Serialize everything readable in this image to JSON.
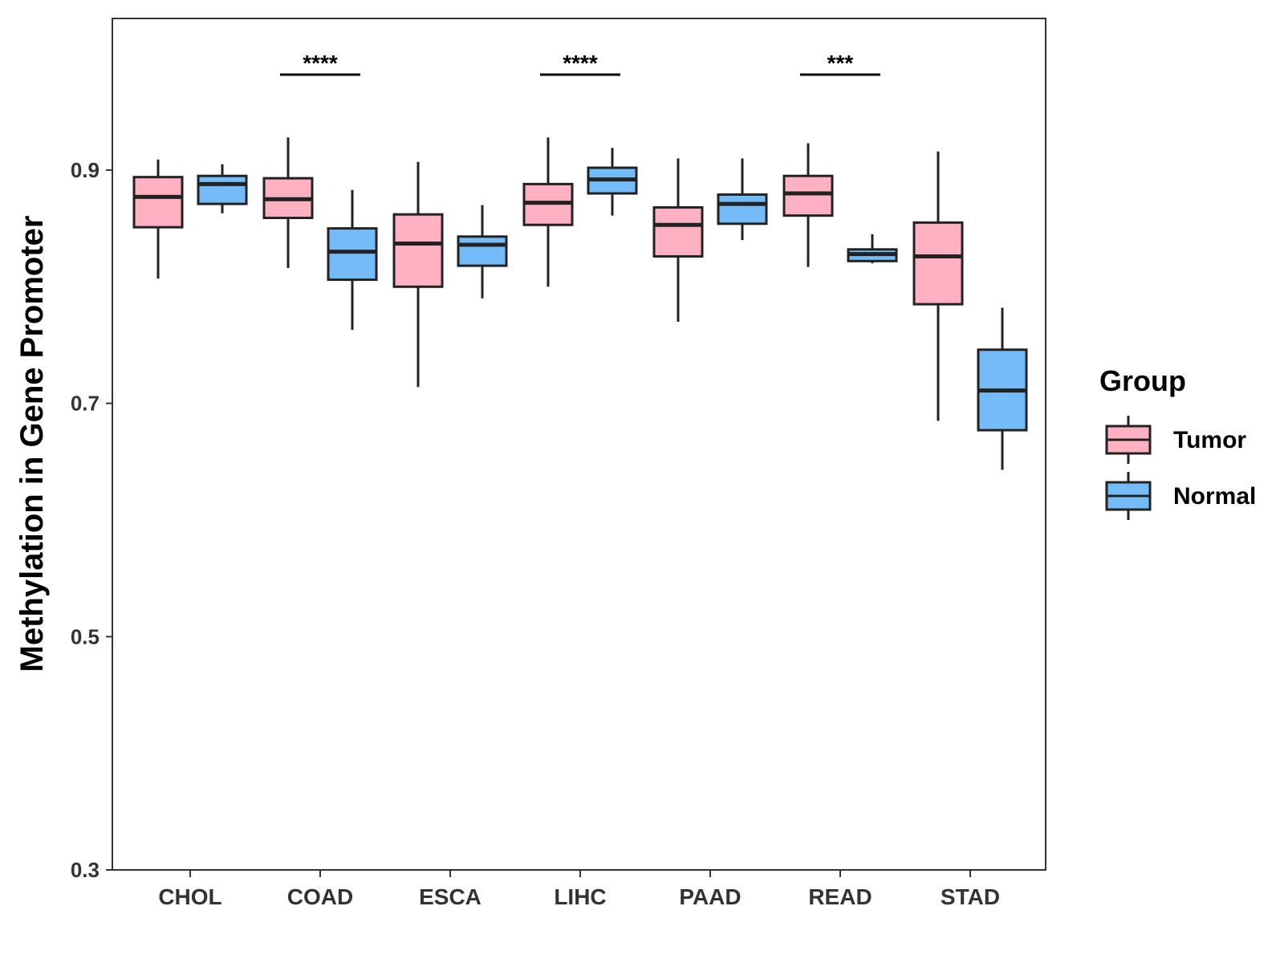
{
  "chart_data": {
    "type": "boxplot",
    "title": "",
    "xlabel": "",
    "ylabel": "Methylation in Gene Promoter",
    "ylim": [
      0.3,
      1.03
    ],
    "yticks": [
      0.3,
      0.5,
      0.7,
      0.9
    ],
    "ytick_labels": [
      "0.3",
      "0.5",
      "0.7",
      "0.9"
    ],
    "grid": false,
    "categories": [
      "CHOL",
      "COAD",
      "ESCA",
      "LIHC",
      "PAAD",
      "READ",
      "STAD"
    ],
    "legend": {
      "title": "Group",
      "position": "right",
      "entries": [
        {
          "name": "Tumor",
          "color": "#FFB0C1"
        },
        {
          "name": "Normal",
          "color": "#74BCF7"
        }
      ]
    },
    "series": [
      {
        "name": "Tumor",
        "color": "#FFB0C1",
        "boxes": [
          {
            "min": 0.807,
            "q1": 0.851,
            "median": 0.877,
            "q3": 0.894,
            "max": 0.909
          },
          {
            "min": 0.816,
            "q1": 0.859,
            "median": 0.875,
            "q3": 0.893,
            "max": 0.928
          },
          {
            "min": 0.714,
            "q1": 0.8,
            "median": 0.837,
            "q3": 0.862,
            "max": 0.907
          },
          {
            "min": 0.8,
            "q1": 0.853,
            "median": 0.872,
            "q3": 0.888,
            "max": 0.928
          },
          {
            "min": 0.77,
            "q1": 0.826,
            "median": 0.853,
            "q3": 0.868,
            "max": 0.91
          },
          {
            "min": 0.817,
            "q1": 0.861,
            "median": 0.88,
            "q3": 0.895,
            "max": 0.923
          },
          {
            "min": 0.685,
            "q1": 0.785,
            "median": 0.826,
            "q3": 0.855,
            "max": 0.916
          }
        ]
      },
      {
        "name": "Normal",
        "color": "#74BCF7",
        "boxes": [
          {
            "min": 0.863,
            "q1": 0.871,
            "median": 0.888,
            "q3": 0.895,
            "max": 0.905
          },
          {
            "min": 0.763,
            "q1": 0.806,
            "median": 0.83,
            "q3": 0.85,
            "max": 0.883
          },
          {
            "min": 0.79,
            "q1": 0.818,
            "median": 0.836,
            "q3": 0.843,
            "max": 0.87
          },
          {
            "min": 0.861,
            "q1": 0.88,
            "median": 0.892,
            "q3": 0.902,
            "max": 0.919
          },
          {
            "min": 0.84,
            "q1": 0.854,
            "median": 0.871,
            "q3": 0.879,
            "max": 0.91
          },
          {
            "min": 0.82,
            "q1": 0.822,
            "median": 0.828,
            "q3": 0.832,
            "max": 0.845
          },
          {
            "min": 0.643,
            "q1": 0.677,
            "median": 0.711,
            "q3": 0.746,
            "max": 0.782
          }
        ]
      }
    ],
    "annotations": [
      {
        "category": "COAD",
        "label": "****"
      },
      {
        "category": "LIHC",
        "label": "****"
      },
      {
        "category": "READ",
        "label": "***"
      }
    ]
  }
}
